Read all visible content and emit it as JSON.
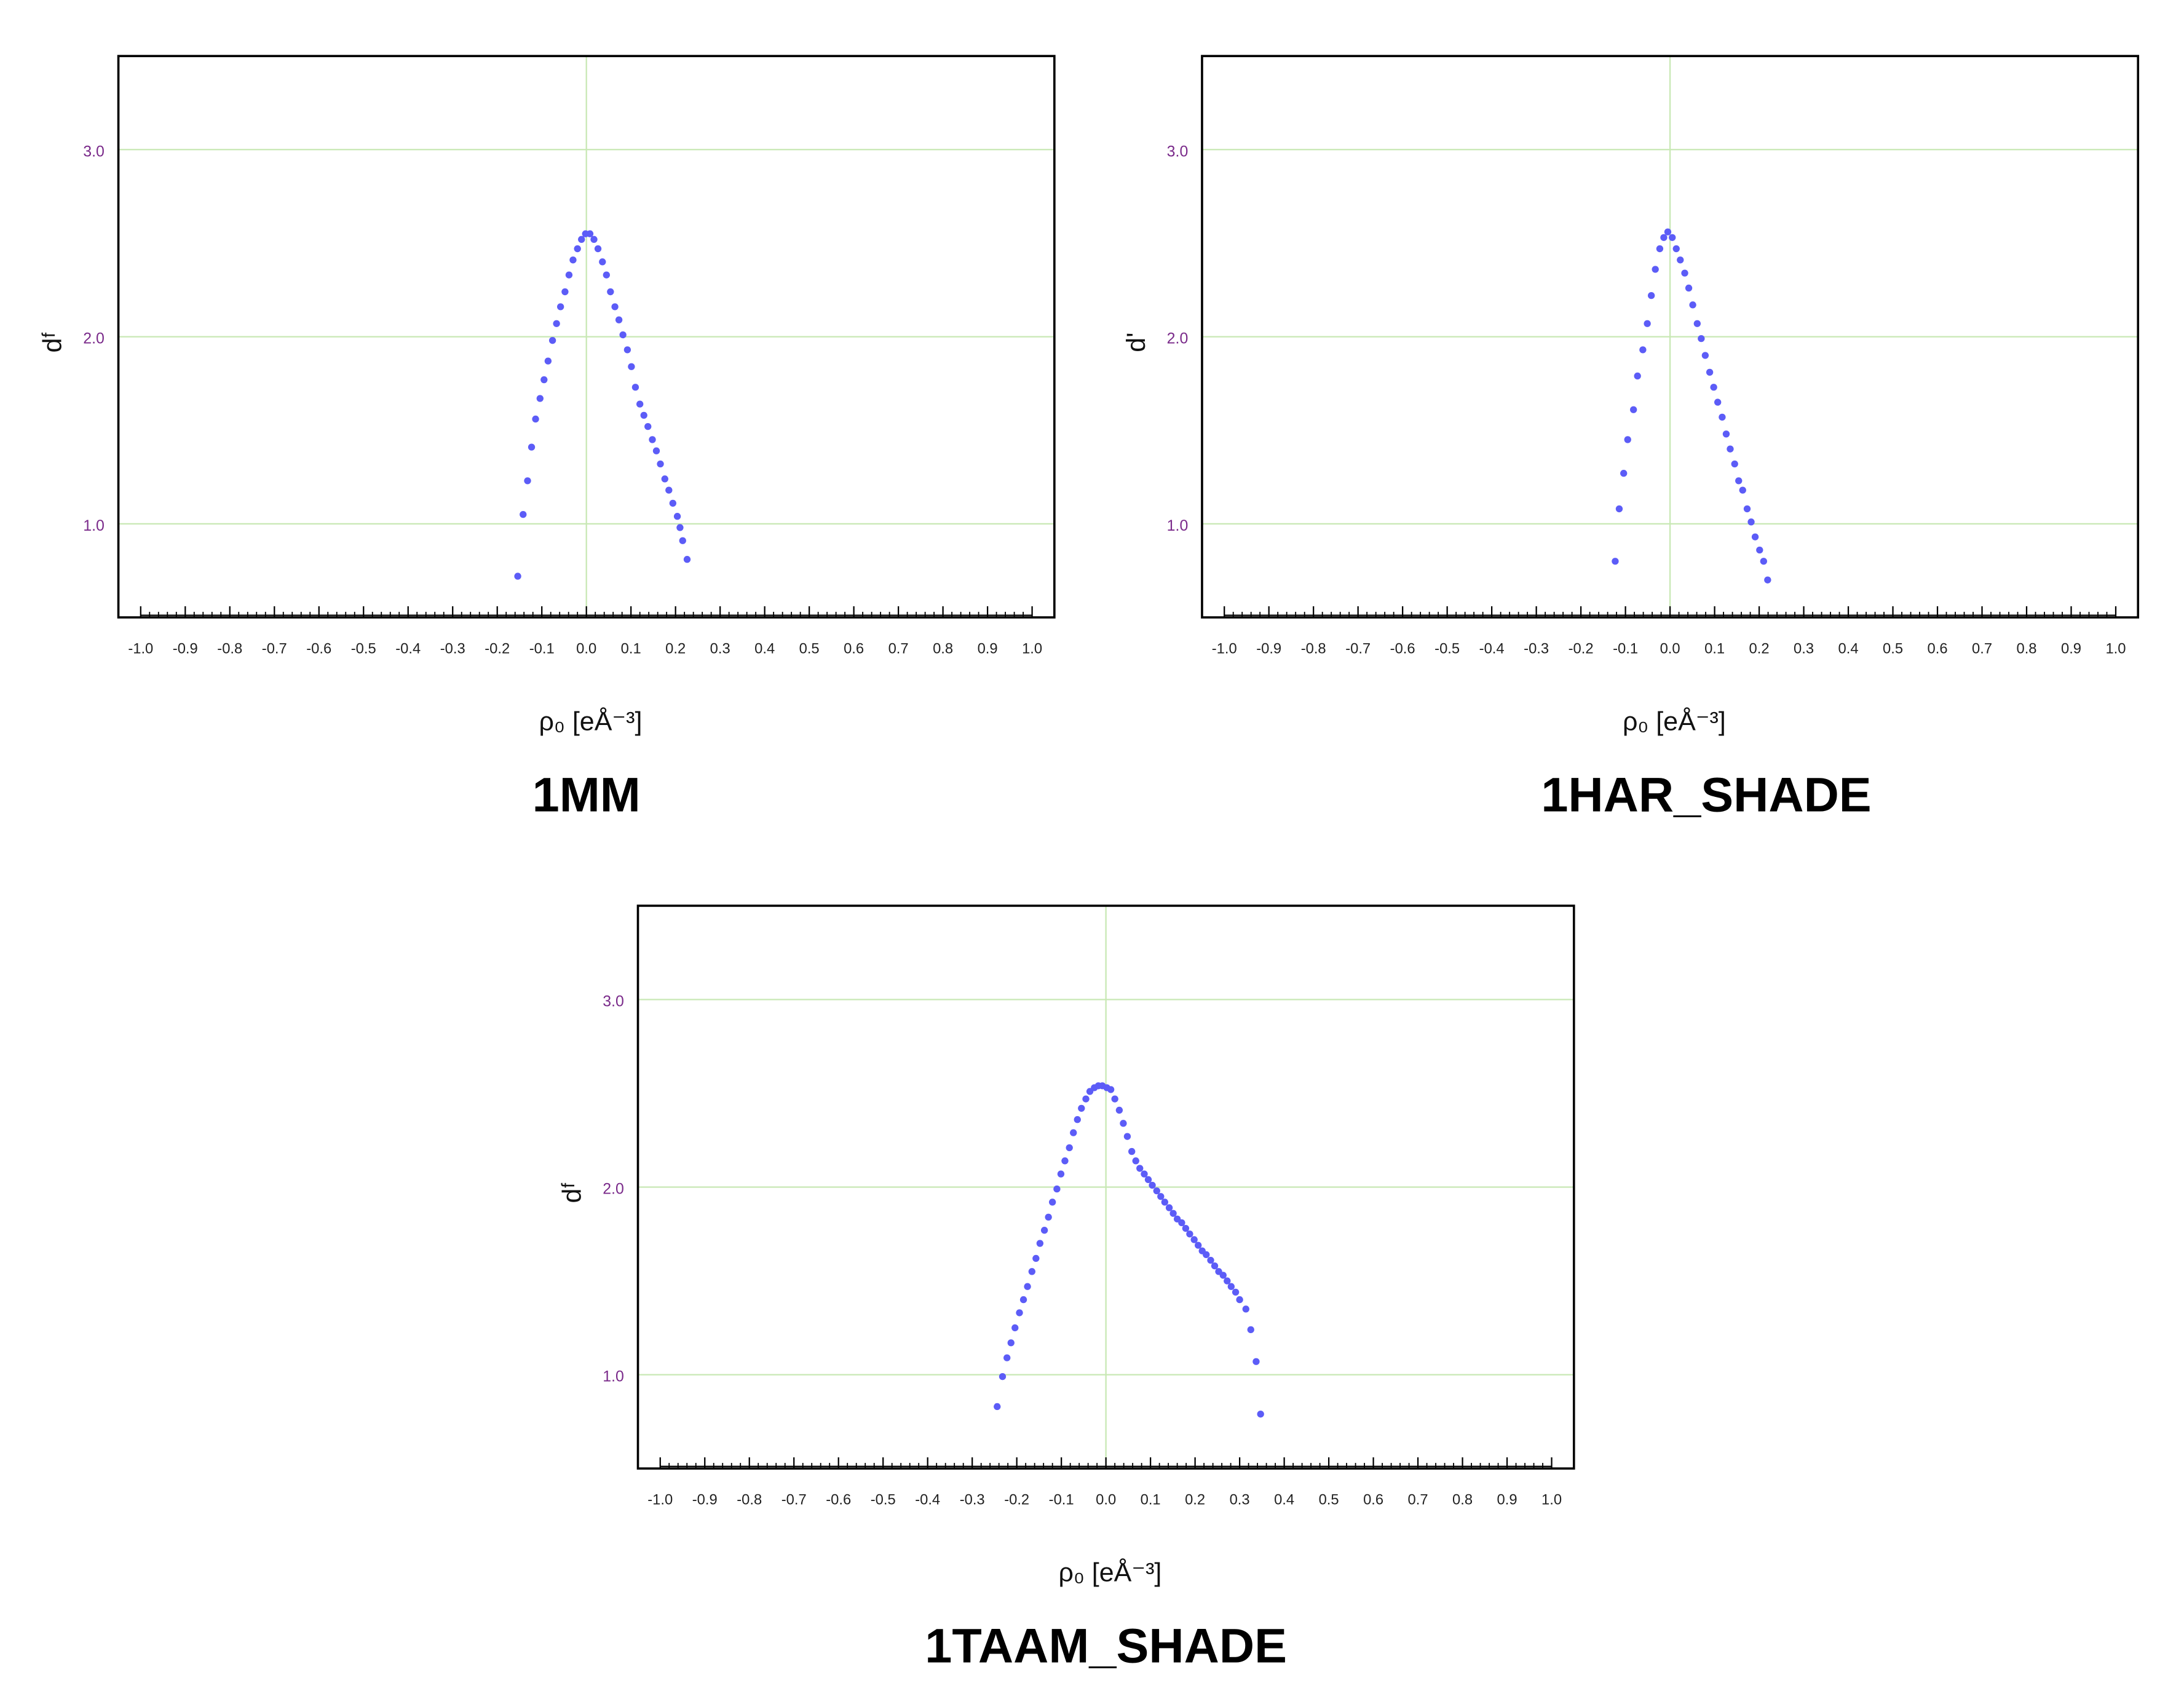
{
  "chart_data": [
    {
      "type": "scatter",
      "title": "1MM",
      "x_label": "ρ₀ [eÅ⁻³]",
      "y_label": "dᶠ",
      "color": "#5c5cf7",
      "grid_color": "#c8e8b4",
      "xlim": [
        -1.05,
        1.05
      ],
      "ylim": [
        0.5,
        3.5
      ],
      "xticks": [
        {
          "value": -1,
          "label": "-1.0"
        },
        -0.9,
        -0.8,
        -0.7,
        -0.6,
        -0.5,
        -0.4,
        -0.3,
        -0.2,
        -0.1,
        {
          "value": 0,
          "label": "0.0"
        },
        0.1,
        0.2,
        0.3,
        0.4,
        0.5,
        0.6,
        0.7,
        0.8,
        0.9,
        {
          "value": 1,
          "label": "1.0"
        }
      ],
      "yticks": [
        {
          "value": 1,
          "label": "1.0"
        },
        {
          "value": 2,
          "label": "2.0"
        },
        {
          "value": 3,
          "label": "3.0"
        }
      ],
      "vlines": [
        0
      ],
      "x": [
        -0.154,
        -0.142,
        -0.132,
        -0.123,
        -0.114,
        -0.104,
        -0.095,
        -0.086,
        -0.076,
        -0.067,
        -0.058,
        -0.048,
        -0.039,
        -0.03,
        -0.02,
        -0.011,
        -0.002,
        0.008,
        0.017,
        0.026,
        0.036,
        0.045,
        0.054,
        0.064,
        0.073,
        0.082,
        0.092,
        0.101,
        0.11,
        0.12,
        0.129,
        0.138,
        0.148,
        0.157,
        0.166,
        0.176,
        0.185,
        0.194,
        0.204,
        0.21,
        0.216,
        0.226
      ],
      "values": [
        0.72,
        1.05,
        1.23,
        1.41,
        1.56,
        1.67,
        1.77,
        1.87,
        1.98,
        2.07,
        2.16,
        2.24,
        2.33,
        2.41,
        2.47,
        2.52,
        2.55,
        2.55,
        2.52,
        2.47,
        2.4,
        2.33,
        2.24,
        2.16,
        2.09,
        2.01,
        1.93,
        1.84,
        1.73,
        1.64,
        1.58,
        1.52,
        1.45,
        1.39,
        1.32,
        1.24,
        1.18,
        1.11,
        1.04,
        0.98,
        0.91,
        0.81
      ]
    },
    {
      "type": "scatter",
      "title": "1HAR_SHADE",
      "x_label": "ρ₀ [eÅ⁻³]",
      "y_label": "d'",
      "color": "#5c5cf7",
      "grid_color": "#c8e8b4",
      "xlim": [
        -1.05,
        1.05
      ],
      "ylim": [
        0.5,
        3.5
      ],
      "xticks": [
        {
          "value": -1,
          "label": "-1.0"
        },
        -0.9,
        -0.8,
        -0.7,
        -0.6,
        -0.5,
        -0.4,
        -0.3,
        -0.2,
        -0.1,
        {
          "value": 0,
          "label": "0.0"
        },
        0.1,
        0.2,
        0.3,
        0.4,
        0.5,
        0.6,
        0.7,
        0.8,
        0.9,
        {
          "value": 1,
          "label": "1.0"
        }
      ],
      "yticks": [
        {
          "value": 1,
          "label": "1.0"
        },
        {
          "value": 2,
          "label": "2.0"
        },
        {
          "value": 3,
          "label": "3.0"
        }
      ],
      "vlines": [
        0
      ],
      "x": [
        -0.123,
        -0.114,
        -0.104,
        -0.095,
        -0.082,
        -0.073,
        -0.061,
        -0.051,
        -0.042,
        -0.033,
        -0.023,
        -0.014,
        -0.005,
        0.005,
        0.014,
        0.023,
        0.033,
        0.042,
        0.051,
        0.061,
        0.07,
        0.079,
        0.089,
        0.098,
        0.107,
        0.117,
        0.126,
        0.135,
        0.145,
        0.154,
        0.163,
        0.173,
        0.182,
        0.191,
        0.201,
        0.21,
        0.219
      ],
      "values": [
        0.8,
        1.08,
        1.27,
        1.45,
        1.61,
        1.79,
        1.93,
        2.07,
        2.22,
        2.36,
        2.47,
        2.53,
        2.56,
        2.53,
        2.47,
        2.41,
        2.34,
        2.26,
        2.17,
        2.07,
        1.99,
        1.9,
        1.81,
        1.73,
        1.65,
        1.57,
        1.48,
        1.4,
        1.32,
        1.23,
        1.18,
        1.08,
        1.01,
        0.93,
        0.86,
        0.8,
        0.7
      ]
    },
    {
      "type": "scatter",
      "title": "1TAAM_SHADE",
      "x_label": "ρ₀ [eÅ⁻³]",
      "y_label": "dᶠ",
      "color": "#5c5cf7",
      "grid_color": "#c8e8b4",
      "xlim": [
        -1.05,
        1.05
      ],
      "ylim": [
        0.5,
        3.5
      ],
      "xticks": [
        {
          "value": -1,
          "label": "-1.0"
        },
        -0.9,
        -0.8,
        -0.7,
        -0.6,
        -0.5,
        -0.4,
        -0.3,
        -0.2,
        -0.1,
        {
          "value": 0,
          "label": "0.0"
        },
        0.1,
        0.2,
        0.3,
        0.4,
        0.5,
        0.6,
        0.7,
        0.8,
        0.9,
        {
          "value": 1,
          "label": "1.0"
        }
      ],
      "yticks": [
        {
          "value": 1,
          "label": "1.0"
        },
        {
          "value": 2,
          "label": "2.0"
        },
        {
          "value": 3,
          "label": "3.0"
        }
      ],
      "vlines": [
        0
      ],
      "x": [
        -0.244,
        -0.232,
        -0.222,
        -0.213,
        -0.204,
        -0.194,
        -0.185,
        -0.176,
        -0.166,
        -0.157,
        -0.148,
        -0.138,
        -0.129,
        -0.12,
        -0.11,
        -0.101,
        -0.092,
        -0.082,
        -0.073,
        -0.064,
        -0.055,
        -0.045,
        -0.036,
        -0.026,
        -0.017,
        -0.008,
        0.002,
        0.011,
        0.02,
        0.03,
        0.039,
        0.048,
        0.058,
        0.067,
        0.076,
        0.086,
        0.095,
        0.104,
        0.114,
        0.123,
        0.132,
        0.142,
        0.151,
        0.16,
        0.17,
        0.179,
        0.188,
        0.198,
        0.207,
        0.216,
        0.225,
        0.235,
        0.244,
        0.253,
        0.263,
        0.272,
        0.281,
        0.291,
        0.3,
        0.314,
        0.325,
        0.337,
        0.347
      ],
      "values": [
        0.83,
        0.99,
        1.09,
        1.17,
        1.25,
        1.33,
        1.4,
        1.47,
        1.55,
        1.62,
        1.7,
        1.77,
        1.84,
        1.92,
        1.99,
        2.07,
        2.14,
        2.21,
        2.29,
        2.36,
        2.42,
        2.47,
        2.51,
        2.53,
        2.54,
        2.54,
        2.53,
        2.52,
        2.47,
        2.41,
        2.34,
        2.27,
        2.19,
        2.14,
        2.1,
        2.07,
        2.04,
        2.01,
        1.98,
        1.95,
        1.92,
        1.89,
        1.86,
        1.83,
        1.81,
        1.78,
        1.75,
        1.72,
        1.69,
        1.66,
        1.64,
        1.61,
        1.58,
        1.55,
        1.53,
        1.5,
        1.47,
        1.44,
        1.4,
        1.35,
        1.24,
        1.07,
        0.79
      ]
    }
  ]
}
